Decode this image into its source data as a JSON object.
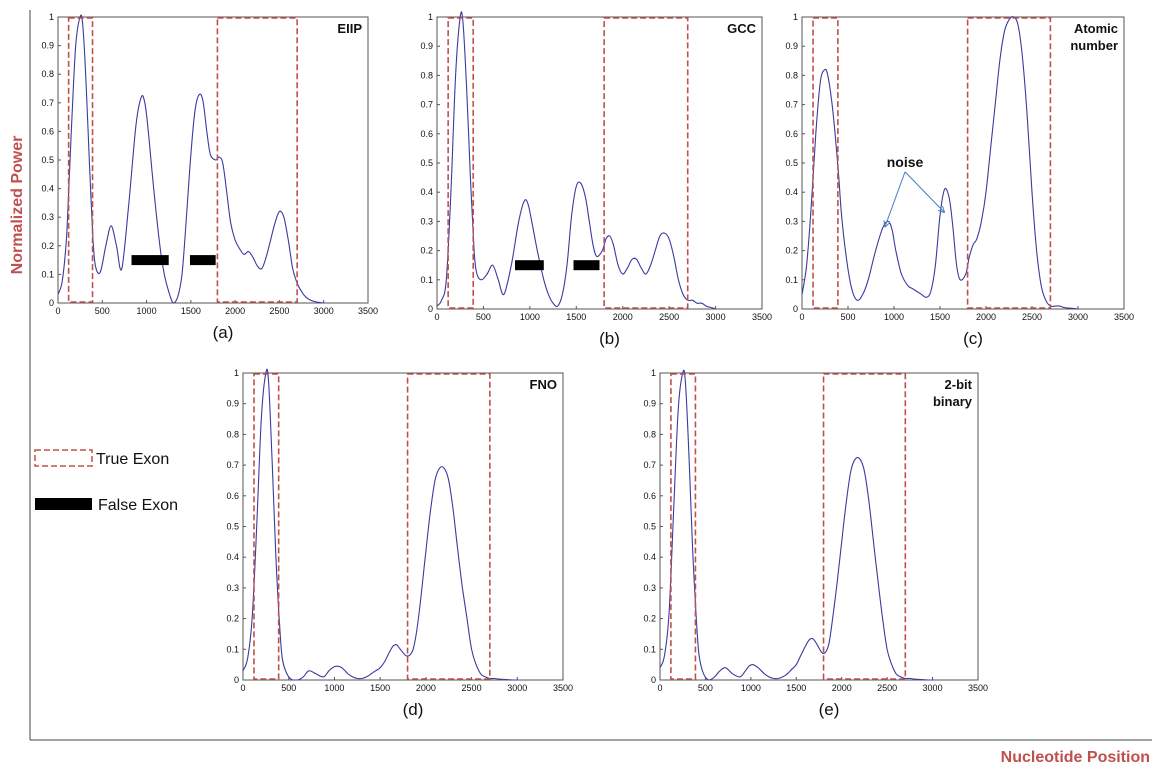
{
  "figure": {
    "y_axis_label": "Normalized  Power",
    "x_axis_label": "Nucleotide Position",
    "legend": {
      "true_exon": "True Exon",
      "false_exon": "False  Exon",
      "true_exon_color": "#c0504d",
      "false_exon_color": "#000000"
    },
    "curve_color": "#3a3aa0"
  },
  "chart_data": [
    {
      "type": "line",
      "panel_label": "(a)",
      "title": "EIIP",
      "xlim": [
        0,
        3500
      ],
      "ylim": [
        0,
        1
      ],
      "xticks": [
        "0",
        "500",
        "1000",
        "1500",
        "2000",
        "2500",
        "3000",
        "3500"
      ],
      "yticks": [
        "0",
        "0.1",
        "0.2",
        "0.3",
        "0.4",
        "0.5",
        "0.6",
        "0.7",
        "0.8",
        "0.9",
        "1"
      ],
      "x": [
        0,
        50,
        100,
        150,
        200,
        250,
        280,
        320,
        360,
        400,
        430,
        480,
        540,
        600,
        660,
        720,
        800,
        880,
        940,
        980,
        1020,
        1080,
        1150,
        1200,
        1250,
        1300,
        1350,
        1400,
        1450,
        1500,
        1550,
        1600,
        1640,
        1680,
        1720,
        1780,
        1820,
        1860,
        1900,
        1950,
        2000,
        2050,
        2100,
        2150,
        2200,
        2250,
        2300,
        2350,
        2400,
        2450,
        2500,
        2550,
        2600,
        2650,
        2700,
        2750,
        2800,
        2850,
        2900,
        2950,
        3000
      ],
      "y": [
        0.03,
        0.08,
        0.25,
        0.6,
        0.9,
        1.0,
        0.97,
        0.75,
        0.45,
        0.2,
        0.12,
        0.11,
        0.2,
        0.27,
        0.2,
        0.12,
        0.35,
        0.62,
        0.72,
        0.7,
        0.6,
        0.4,
        0.2,
        0.1,
        0.04,
        0.0,
        0.02,
        0.1,
        0.3,
        0.52,
        0.68,
        0.73,
        0.7,
        0.6,
        0.52,
        0.5,
        0.51,
        0.49,
        0.4,
        0.28,
        0.22,
        0.19,
        0.17,
        0.18,
        0.16,
        0.13,
        0.12,
        0.16,
        0.22,
        0.28,
        0.32,
        0.3,
        0.22,
        0.12,
        0.07,
        0.04,
        0.02,
        0.01,
        0.005,
        0.002,
        0.0
      ],
      "true_exons": [
        [
          120,
          390
        ],
        [
          1800,
          2700
        ]
      ],
      "false_exons": [
        [
          830,
          1250
        ],
        [
          1490,
          1780
        ]
      ],
      "false_exon_level": 0.15
    },
    {
      "type": "line",
      "panel_label": "(b)",
      "title": "GCC",
      "xlim": [
        0,
        3500
      ],
      "ylim": [
        0,
        1
      ],
      "xticks": [
        "0",
        "500",
        "1000",
        "1500",
        "2000",
        "2500",
        "3000",
        "3500"
      ],
      "yticks": [
        "0",
        "0.1",
        "0.2",
        "0.3",
        "0.4",
        "0.5",
        "0.6",
        "0.7",
        "0.8",
        "0.9",
        "1"
      ],
      "x": [
        0,
        50,
        100,
        150,
        200,
        250,
        280,
        320,
        360,
        400,
        430,
        480,
        540,
        600,
        660,
        720,
        800,
        880,
        940,
        980,
        1020,
        1080,
        1150,
        1200,
        1250,
        1300,
        1350,
        1400,
        1450,
        1500,
        1550,
        1600,
        1640,
        1680,
        1720,
        1780,
        1820,
        1860,
        1900,
        1950,
        2000,
        2050,
        2100,
        2150,
        2200,
        2250,
        2300,
        2350,
        2400,
        2450,
        2500,
        2550,
        2600,
        2650,
        2700,
        2750,
        2800,
        2850,
        2900,
        2950,
        3000
      ],
      "y": [
        0.01,
        0.03,
        0.1,
        0.4,
        0.8,
        1.0,
        0.98,
        0.75,
        0.45,
        0.2,
        0.12,
        0.1,
        0.12,
        0.15,
        0.1,
        0.05,
        0.15,
        0.3,
        0.37,
        0.36,
        0.3,
        0.2,
        0.1,
        0.05,
        0.02,
        0.01,
        0.05,
        0.15,
        0.32,
        0.42,
        0.43,
        0.38,
        0.3,
        0.22,
        0.18,
        0.2,
        0.24,
        0.25,
        0.22,
        0.15,
        0.12,
        0.14,
        0.17,
        0.17,
        0.14,
        0.12,
        0.15,
        0.2,
        0.25,
        0.26,
        0.24,
        0.18,
        0.1,
        0.05,
        0.03,
        0.03,
        0.02,
        0.02,
        0.01,
        0.005,
        0.0
      ],
      "true_exons": [
        [
          120,
          390
        ],
        [
          1800,
          2700
        ]
      ],
      "false_exons": [
        [
          840,
          1150
        ],
        [
          1470,
          1750
        ]
      ],
      "false_exon_level": 0.15
    },
    {
      "type": "line",
      "panel_label": "(c)",
      "title": "Atomic\nnumber",
      "annotation": "noise",
      "annotation_targets": [
        [
          900,
          0.28
        ],
        [
          1550,
          0.33
        ]
      ],
      "xlim": [
        0,
        3500
      ],
      "ylim": [
        0,
        1
      ],
      "xticks": [
        "0",
        "500",
        "1000",
        "1500",
        "2000",
        "2500",
        "3000",
        "3500"
      ],
      "yticks": [
        "0",
        "0.1",
        "0.2",
        "0.3",
        "0.4",
        "0.5",
        "0.6",
        "0.7",
        "0.8",
        "0.9",
        "1"
      ],
      "x": [
        0,
        50,
        100,
        150,
        200,
        250,
        280,
        320,
        360,
        400,
        430,
        480,
        540,
        600,
        660,
        720,
        800,
        880,
        940,
        980,
        1020,
        1080,
        1150,
        1200,
        1250,
        1300,
        1350,
        1400,
        1450,
        1500,
        1550,
        1600,
        1640,
        1680,
        1720,
        1780,
        1820,
        1860,
        1900,
        1950,
        2000,
        2050,
        2100,
        2150,
        2200,
        2250,
        2300,
        2350,
        2400,
        2450,
        2500,
        2550,
        2600,
        2650,
        2700,
        2750,
        2800,
        2850,
        2900,
        2950,
        3000
      ],
      "y": [
        0.05,
        0.15,
        0.35,
        0.6,
        0.78,
        0.82,
        0.8,
        0.72,
        0.6,
        0.45,
        0.32,
        0.18,
        0.07,
        0.03,
        0.05,
        0.1,
        0.2,
        0.28,
        0.3,
        0.27,
        0.2,
        0.12,
        0.08,
        0.07,
        0.06,
        0.05,
        0.04,
        0.06,
        0.15,
        0.32,
        0.41,
        0.38,
        0.28,
        0.15,
        0.1,
        0.12,
        0.18,
        0.22,
        0.24,
        0.3,
        0.4,
        0.55,
        0.7,
        0.85,
        0.95,
        0.99,
        1.0,
        0.97,
        0.85,
        0.65,
        0.4,
        0.2,
        0.08,
        0.03,
        0.01,
        0.01,
        0.01,
        0.005,
        0.003,
        0.002,
        0.0
      ],
      "true_exons": [
        [
          120,
          390
        ],
        [
          1800,
          2700
        ]
      ]
    },
    {
      "type": "line",
      "panel_label": "(d)",
      "title": "FNO",
      "xlim": [
        0,
        3500
      ],
      "ylim": [
        0,
        1
      ],
      "xticks": [
        "0",
        "500",
        "1000",
        "1500",
        "2000",
        "2500",
        "3000",
        "3500"
      ],
      "yticks": [
        "0",
        "0.1",
        "0.2",
        "0.3",
        "0.4",
        "0.5",
        "0.6",
        "0.7",
        "0.8",
        "0.9",
        "1"
      ],
      "x": [
        0,
        50,
        100,
        150,
        200,
        250,
        280,
        320,
        360,
        400,
        430,
        480,
        540,
        600,
        660,
        720,
        800,
        880,
        940,
        980,
        1020,
        1080,
        1150,
        1200,
        1250,
        1300,
        1350,
        1400,
        1450,
        1500,
        1550,
        1600,
        1640,
        1680,
        1720,
        1780,
        1820,
        1860,
        1900,
        1950,
        2000,
        2050,
        2100,
        2150,
        2200,
        2250,
        2300,
        2350,
        2400,
        2450,
        2500,
        2550,
        2600,
        2650,
        2700,
        2750,
        2800,
        2850,
        2900,
        2950,
        3000
      ],
      "y": [
        0.03,
        0.07,
        0.2,
        0.5,
        0.85,
        1.0,
        0.97,
        0.7,
        0.4,
        0.18,
        0.07,
        0.02,
        0.0,
        0.0,
        0.01,
        0.03,
        0.02,
        0.01,
        0.03,
        0.04,
        0.045,
        0.04,
        0.02,
        0.01,
        0.005,
        0.005,
        0.01,
        0.02,
        0.03,
        0.04,
        0.06,
        0.09,
        0.11,
        0.115,
        0.1,
        0.08,
        0.08,
        0.1,
        0.16,
        0.28,
        0.42,
        0.55,
        0.65,
        0.69,
        0.69,
        0.65,
        0.55,
        0.42,
        0.3,
        0.2,
        0.1,
        0.05,
        0.02,
        0.01,
        0.005,
        0.005,
        0.003,
        0.002,
        0.001,
        0.0,
        0.0
      ],
      "true_exons": [
        [
          120,
          390
        ],
        [
          1800,
          2700
        ]
      ]
    },
    {
      "type": "line",
      "panel_label": "(e)",
      "title": "2-bit\nbinary",
      "xlim": [
        0,
        3500
      ],
      "ylim": [
        0,
        1
      ],
      "xticks": [
        "0",
        "500",
        "1000",
        "1500",
        "2000",
        "2500",
        "3000",
        "3500"
      ],
      "yticks": [
        "0",
        "0.1",
        "0.2",
        "0.3",
        "0.4",
        "0.5",
        "0.6",
        "0.7",
        "0.8",
        "0.9",
        "1"
      ],
      "x": [
        0,
        50,
        100,
        150,
        200,
        250,
        280,
        320,
        360,
        400,
        430,
        480,
        540,
        600,
        660,
        720,
        800,
        880,
        940,
        980,
        1020,
        1080,
        1150,
        1200,
        1250,
        1300,
        1350,
        1400,
        1450,
        1500,
        1550,
        1600,
        1640,
        1680,
        1720,
        1780,
        1820,
        1860,
        1900,
        1950,
        2000,
        2050,
        2100,
        2150,
        2200,
        2250,
        2300,
        2350,
        2400,
        2450,
        2500,
        2550,
        2600,
        2650,
        2700,
        2750,
        2800,
        2850,
        2900,
        2950,
        3000
      ],
      "y": [
        0.04,
        0.08,
        0.22,
        0.55,
        0.88,
        1.0,
        0.97,
        0.72,
        0.42,
        0.2,
        0.08,
        0.02,
        0.0,
        0.01,
        0.03,
        0.04,
        0.02,
        0.01,
        0.03,
        0.045,
        0.05,
        0.04,
        0.02,
        0.01,
        0.005,
        0.005,
        0.01,
        0.02,
        0.035,
        0.05,
        0.08,
        0.11,
        0.13,
        0.135,
        0.12,
        0.09,
        0.09,
        0.12,
        0.2,
        0.32,
        0.45,
        0.58,
        0.68,
        0.72,
        0.72,
        0.68,
        0.58,
        0.45,
        0.32,
        0.2,
        0.1,
        0.05,
        0.02,
        0.01,
        0.005,
        0.005,
        0.003,
        0.002,
        0.001,
        0.0,
        0.0
      ],
      "true_exons": [
        [
          120,
          390
        ],
        [
          1800,
          2700
        ]
      ]
    }
  ]
}
